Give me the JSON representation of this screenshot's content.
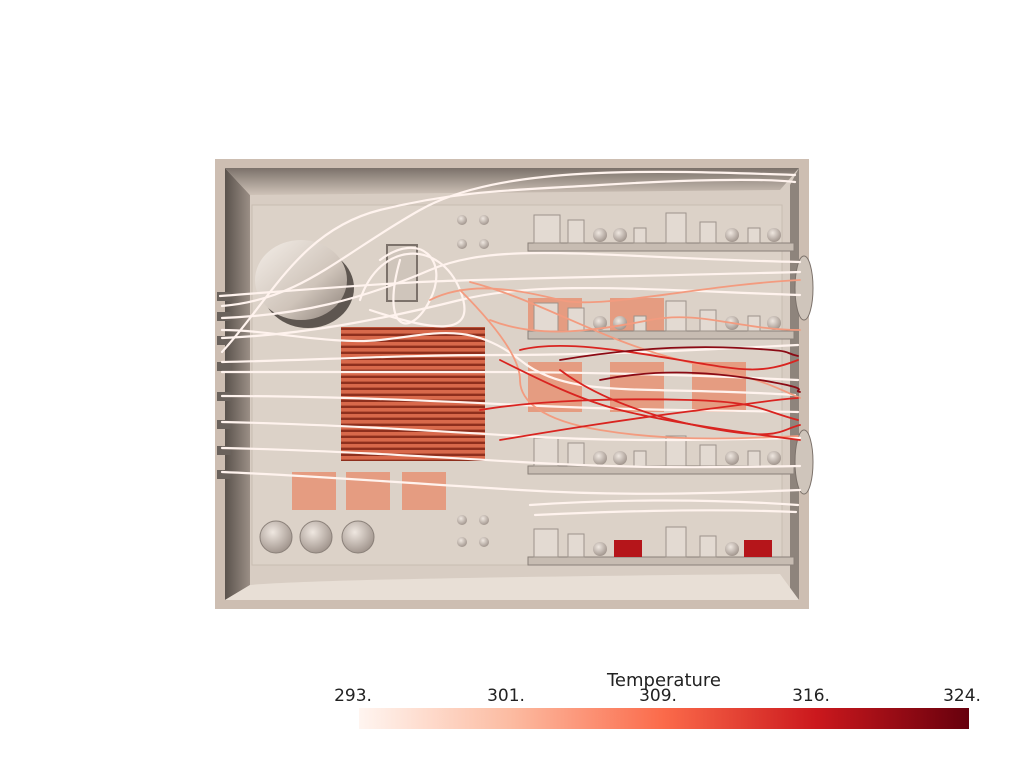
{
  "legend": {
    "title": "Temperature",
    "ticks": [
      "293.",
      "301.",
      "309.",
      "316.",
      "324."
    ],
    "range": [
      293,
      324
    ],
    "colors": [
      "#fff5f0",
      "#fcbba1",
      "#fb6a4a",
      "#cb181d",
      "#67000d"
    ]
  },
  "colors": {
    "enclosure": "#cdbeb2",
    "board": "#dcd2c8",
    "component": "#d9cfc6",
    "heatsink": "#d9684a",
    "hot_pad": "#e88a6a",
    "cool_stream": "#fff3ee",
    "warm_stream": "#f39b7f",
    "hot_stream": "#d92420",
    "hottest_stream": "#8b0a14"
  }
}
